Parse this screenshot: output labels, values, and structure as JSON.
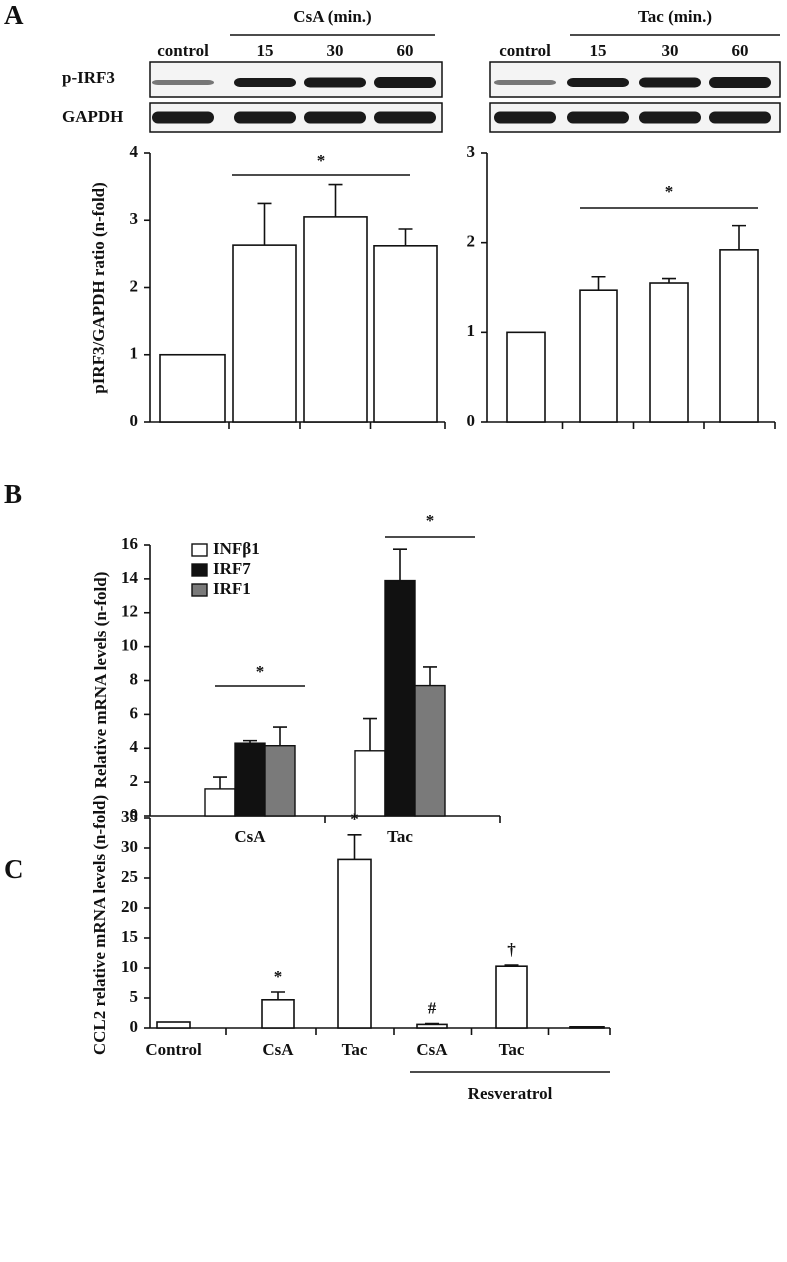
{
  "panels": [
    "A",
    "B",
    "C"
  ],
  "blot_rows": [
    "p-IRF3",
    "GAPDH"
  ],
  "chart_data": [
    {
      "type": "bar",
      "group_label": "CsA (min.)",
      "ylabel": "pIRF3/GAPDH ratio (n-fold)",
      "categories": [
        "control",
        "15",
        "30",
        "60"
      ],
      "values": [
        1,
        2.63,
        3.05,
        2.62
      ],
      "errors": [
        null,
        0.62,
        0.48,
        0.25
      ],
      "color": "#ffffff",
      "ylim": [
        0,
        4
      ],
      "yticks": [
        0,
        1,
        2,
        3,
        4
      ],
      "annotations": [
        "*"
      ]
    },
    {
      "type": "bar",
      "group_label": "Tac (min.)",
      "categories": [
        "control",
        "15",
        "30",
        "60"
      ],
      "values": [
        1,
        1.47,
        1.55,
        1.92
      ],
      "errors": [
        null,
        0.15,
        0.05,
        0.27
      ],
      "color": "#ffffff",
      "ylim": [
        0,
        3
      ],
      "yticks": [
        0,
        1,
        2,
        3
      ],
      "annotations": [
        "*"
      ]
    },
    {
      "type": "grouped-bar",
      "ylabel": "Relative mRNA levels (n-fold)",
      "categories": [
        "CsA",
        "Tac"
      ],
      "series": [
        {
          "name": "INFβ1",
          "color": "#ffffff",
          "values": [
            1.6,
            3.85
          ],
          "errors": [
            0.7,
            1.9
          ]
        },
        {
          "name": "IRF7",
          "color": "#111111",
          "values": [
            4.3,
            13.9
          ],
          "errors": [
            0.15,
            1.85
          ]
        },
        {
          "name": "IRF1",
          "color": "#7a7a7a",
          "values": [
            4.15,
            7.7
          ],
          "errors": [
            1.1,
            1.1
          ]
        }
      ],
      "ylim": [
        0,
        16
      ],
      "yticks": [
        0,
        2,
        4,
        6,
        8,
        10,
        12,
        14,
        16
      ],
      "annotations": [
        "*",
        "*"
      ],
      "legend": "upper left"
    },
    {
      "type": "bar",
      "ylabel": "CCL2 relative mRNA levels (n-fold)",
      "group_label": "Resveratrol",
      "categories": [
        "Control",
        "CsA",
        "Tac",
        "CsA",
        "Tac",
        null
      ],
      "values": [
        1,
        4.7,
        28.1,
        0.6,
        10.3,
        0.2
      ],
      "errors": [
        null,
        1.3,
        4.1,
        0.15,
        0.2,
        null
      ],
      "color": "#ffffff",
      "ylim": [
        0,
        35
      ],
      "yticks": [
        0,
        5,
        10,
        15,
        20,
        25,
        30,
        35
      ],
      "annotations": [
        null,
        "*",
        "*",
        "#",
        "†",
        null
      ]
    }
  ]
}
